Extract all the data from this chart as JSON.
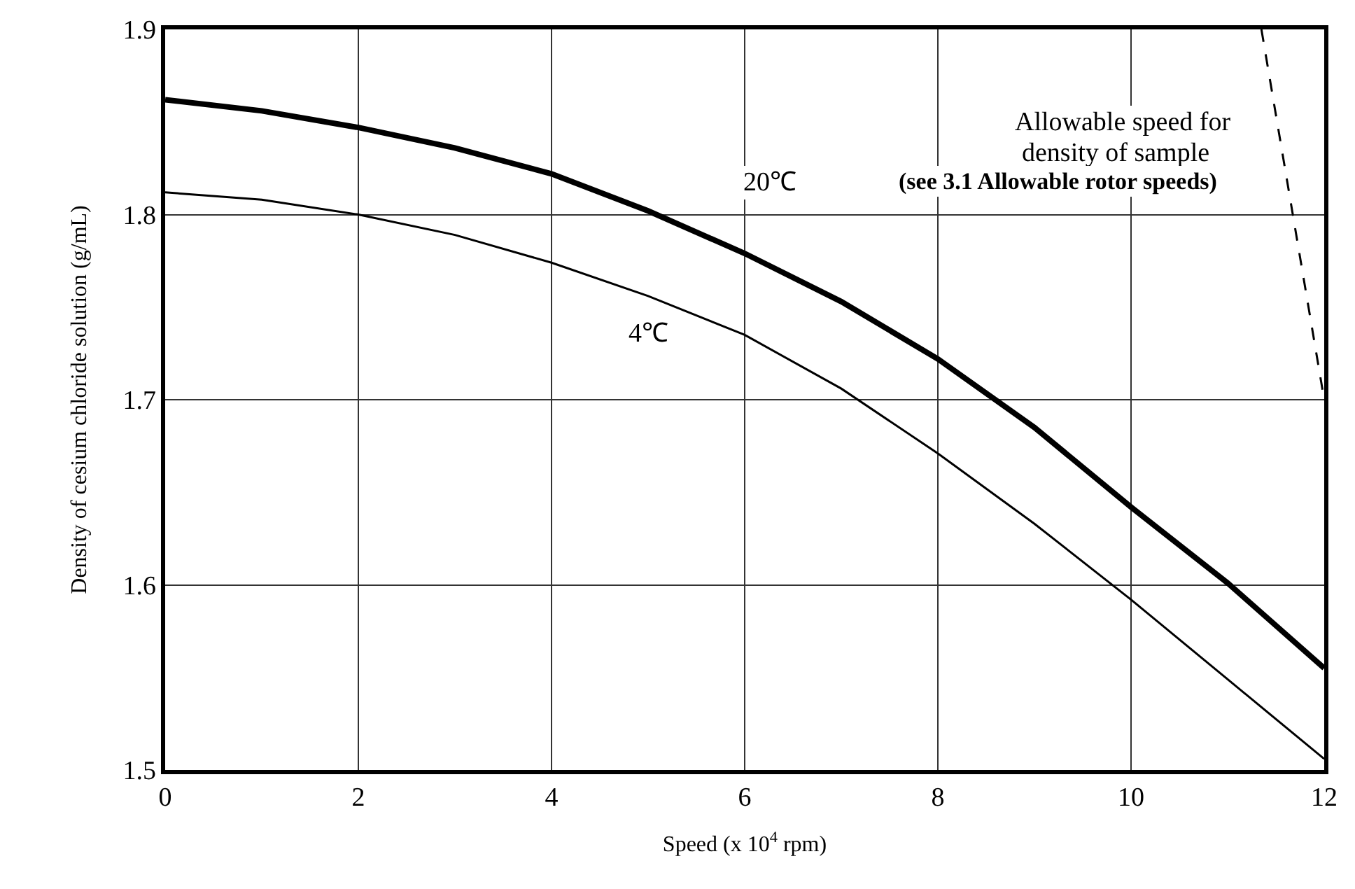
{
  "chart_data": {
    "type": "line",
    "xlabel": "Speed (x 10$^{4}$ rpm)",
    "ylabel": "Density of cesium chloride solution (g/mL)",
    "xlim": [
      0,
      12
    ],
    "xticks": [
      0,
      2,
      4,
      6,
      8,
      10,
      12
    ],
    "ylim": [
      1.5,
      1.9
    ],
    "yticks": [
      1.5,
      1.6,
      1.7,
      1.8,
      1.9
    ],
    "grid": true,
    "legend": false,
    "marker": "none",
    "series": [
      {
        "name": "20℃",
        "color": "#000000",
        "x": [
          0,
          1,
          2,
          3,
          4,
          5,
          6,
          7,
          8,
          9,
          10,
          11,
          12
        ],
        "values": [
          1.862,
          1.856,
          1.847,
          1.836,
          1.822,
          1.802,
          1.779,
          1.753,
          1.722,
          1.685,
          1.642,
          1.601,
          1.555
        ]
      },
      {
        "name": "4℃",
        "color": "#000000",
        "x": [
          0,
          1,
          2,
          3,
          4,
          5,
          6,
          7,
          8,
          9,
          10,
          11,
          12
        ],
        "values": [
          1.812,
          1.808,
          1.8,
          1.789,
          1.774,
          1.756,
          1.735,
          1.706,
          1.671,
          1.633,
          1.592,
          1.549,
          1.506
        ]
      },
      {
        "color": "#000000",
        "line_style": "dashed",
        "x": [
          11.35,
          12
        ],
        "values": [
          1.9,
          1.7
        ]
      }
    ],
    "annotations": [
      "Allowable speed for",
      "density of sample",
      "(see 3.1 Allowable rotor speeds)"
    ]
  }
}
